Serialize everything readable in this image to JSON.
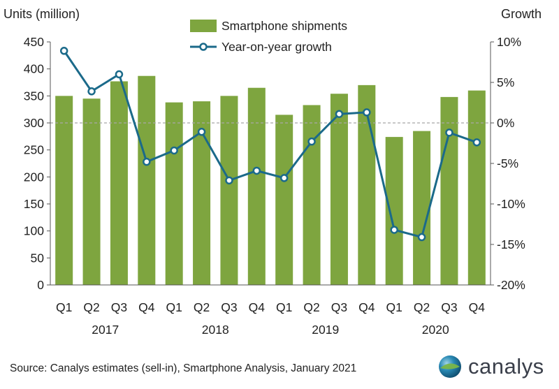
{
  "colors": {
    "bar": "#7ea53f",
    "line": "#1b6a8a",
    "zero_line": "#a8a8a8",
    "axis": "#555555"
  },
  "chart_data": {
    "type": "bar",
    "y_left_label": "Units (million)",
    "y_right_label": "Growth",
    "ylim_left": [
      0,
      450
    ],
    "ylim_right": [
      -20,
      10
    ],
    "left_ticks": [
      "0",
      "50",
      "100",
      "150",
      "200",
      "250",
      "300",
      "350",
      "400",
      "450"
    ],
    "right_ticks": [
      "-20%",
      "-15%",
      "-10%",
      "-5%",
      "0%",
      "5%",
      "10%"
    ],
    "categories": [
      "Q1",
      "Q2",
      "Q3",
      "Q4",
      "Q1",
      "Q2",
      "Q3",
      "Q4",
      "Q1",
      "Q2",
      "Q3",
      "Q4",
      "Q1",
      "Q2",
      "Q3",
      "Q4"
    ],
    "years": [
      "2017",
      "2018",
      "2019",
      "2020"
    ],
    "legend": [
      "Smartphone shipments",
      "Year-on-year growth"
    ],
    "series": [
      {
        "name": "Smartphone shipments",
        "axis": "left",
        "type": "bar",
        "values": [
          350,
          345,
          377,
          387,
          338,
          340,
          350,
          365,
          315,
          333,
          354,
          370,
          274,
          285,
          348,
          360
        ]
      },
      {
        "name": "Year-on-year growth",
        "axis": "right",
        "type": "line",
        "unit": "%",
        "values": [
          8.9,
          3.9,
          6.0,
          -4.8,
          -3.4,
          -1.1,
          -7.1,
          -5.9,
          -6.8,
          -2.3,
          1.1,
          1.3,
          -13.2,
          -14.1,
          -1.2,
          -2.4
        ]
      }
    ],
    "grid": false,
    "legend_position": "top-center"
  },
  "source": "Source:  Canalys estimates (sell-in), Smartphone Analysis, January 2021",
  "logo": {
    "text": "canalys"
  }
}
